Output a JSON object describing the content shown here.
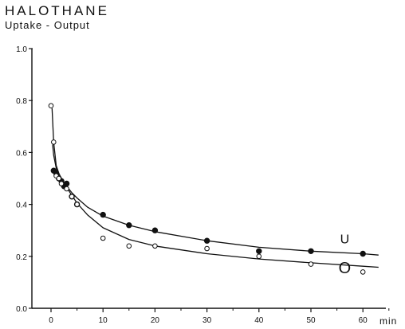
{
  "chart_data": {
    "type": "scatter",
    "title": "HALOTHANE",
    "subtitle": "Uptake - Output",
    "xlabel": "min",
    "ylabel": "",
    "xlim": [
      0,
      66
    ],
    "ylim": [
      0.0,
      1.0
    ],
    "x_ticks": [
      0,
      10,
      20,
      30,
      40,
      50,
      60
    ],
    "x_tick_labels": [
      "0",
      "10",
      "20",
      "30",
      "40",
      "50",
      "60"
    ],
    "y_ticks": [
      0.0,
      0.2,
      0.4,
      0.6,
      0.8,
      1.0
    ],
    "y_tick_labels": [
      "0.0",
      "0.2",
      "0.4",
      "0.6",
      "0.8",
      "1.0"
    ],
    "grid": false,
    "series": [
      {
        "name": "U",
        "marker": "filled-circle",
        "x": [
          0.5,
          1,
          1.5,
          2,
          2.5,
          3,
          4,
          5,
          10,
          15,
          20,
          30,
          40,
          50,
          60
        ],
        "y": [
          0.53,
          0.52,
          0.5,
          0.49,
          0.47,
          0.48,
          0.43,
          0.4,
          0.36,
          0.32,
          0.3,
          0.26,
          0.22,
          0.22,
          0.21
        ],
        "curve_x": [
          0.3,
          0.5,
          1,
          1.5,
          2,
          3,
          4,
          5,
          7,
          10,
          15,
          20,
          30,
          40,
          50,
          60,
          63
        ],
        "curve_y": [
          0.63,
          0.59,
          0.54,
          0.51,
          0.495,
          0.47,
          0.445,
          0.425,
          0.39,
          0.355,
          0.32,
          0.295,
          0.26,
          0.235,
          0.22,
          0.21,
          0.205
        ]
      },
      {
        "name": "O",
        "marker": "open-circle",
        "x": [
          0,
          0.5,
          1,
          1.5,
          2,
          3,
          4,
          5,
          10,
          15,
          20,
          30,
          40,
          50,
          60
        ],
        "y": [
          0.78,
          0.64,
          0.51,
          0.5,
          0.48,
          0.46,
          0.43,
          0.4,
          0.27,
          0.24,
          0.24,
          0.23,
          0.2,
          0.17,
          0.14
        ],
        "curve_x": [
          0.2,
          0.5,
          1,
          1.5,
          2,
          3,
          4,
          5,
          7,
          10,
          15,
          20,
          30,
          40,
          50,
          60,
          63
        ],
        "curve_y": [
          0.77,
          0.64,
          0.55,
          0.52,
          0.5,
          0.465,
          0.435,
          0.405,
          0.36,
          0.31,
          0.265,
          0.24,
          0.21,
          0.19,
          0.175,
          0.162,
          0.158
        ]
      }
    ],
    "series_labels": [
      {
        "text": "U",
        "x": 56.5,
        "y": 0.25
      },
      {
        "text": "O",
        "x": 56.5,
        "y": 0.135
      }
    ]
  }
}
